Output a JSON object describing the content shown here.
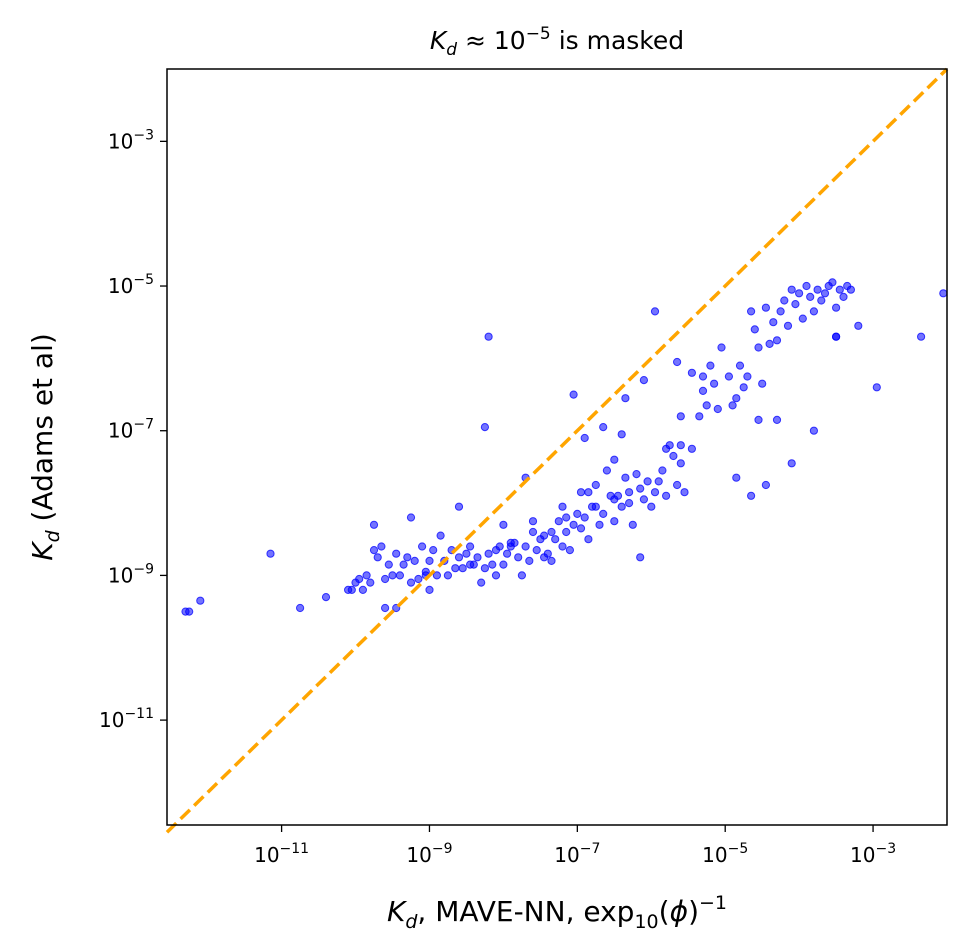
{
  "chart_data": {
    "type": "scatter",
    "scale": "log",
    "title": {
      "italic": "K",
      "sub": "d",
      "mid": " ≈ 10",
      "sup": "−5",
      "tail": " is masked"
    },
    "xlabel": {
      "italic": "K",
      "sub": "d",
      "text1": ", MAVE-NN, exp",
      "sub2": "10",
      "text2": "(",
      "italic2": "ϕ",
      "text3": ")",
      "sup": "−1"
    },
    "ylabel": {
      "italic": "K",
      "sub": "d",
      "text": " (Adams et al)"
    },
    "xlim_log10": [
      -12.55,
      -2.0
    ],
    "ylim_log10": [
      -12.45,
      -2.0
    ],
    "xticks": [
      {
        "base": "10",
        "exp": "−11",
        "value": -11
      },
      {
        "base": "10",
        "exp": "−9",
        "value": -9
      },
      {
        "base": "10",
        "exp": "−7",
        "value": -7
      },
      {
        "base": "10",
        "exp": "−5",
        "value": -5
      },
      {
        "base": "10",
        "exp": "−3",
        "value": -3
      }
    ],
    "yticks": [
      {
        "base": "10",
        "exp": "−3",
        "value": -3
      },
      {
        "base": "10",
        "exp": "−5",
        "value": -5
      },
      {
        "base": "10",
        "exp": "−7",
        "value": -7
      },
      {
        "base": "10",
        "exp": "−9",
        "value": -9
      },
      {
        "base": "10",
        "exp": "−11",
        "value": -11
      }
    ],
    "point_color": "#0000ff",
    "point_alpha": 0.55,
    "line": {
      "type": "y=x",
      "color": "#ffa500",
      "dash": true
    },
    "points_log10": [
      [
        -12.3,
        -9.5
      ],
      [
        -12.25,
        -9.5
      ],
      [
        -12.1,
        -9.35
      ],
      [
        -11.15,
        -8.7
      ],
      [
        -10.75,
        -9.45
      ],
      [
        -10.4,
        -9.3
      ],
      [
        -10.1,
        -9.2
      ],
      [
        -10.05,
        -9.2
      ],
      [
        -10.0,
        -9.1
      ],
      [
        -9.95,
        -9.05
      ],
      [
        -9.9,
        -9.2
      ],
      [
        -9.85,
        -9.0
      ],
      [
        -9.8,
        -9.1
      ],
      [
        -9.75,
        -8.65
      ],
      [
        -9.7,
        -8.75
      ],
      [
        -9.65,
        -8.6
      ],
      [
        -9.6,
        -9.05
      ],
      [
        -9.55,
        -8.85
      ],
      [
        -9.5,
        -9.0
      ],
      [
        -9.45,
        -9.45
      ],
      [
        -9.45,
        -8.7
      ],
      [
        -9.4,
        -9.0
      ],
      [
        -9.35,
        -8.85
      ],
      [
        -9.3,
        -8.75
      ],
      [
        -9.25,
        -9.1
      ],
      [
        -9.2,
        -8.8
      ],
      [
        -9.15,
        -9.05
      ],
      [
        -9.1,
        -8.6
      ],
      [
        -9.05,
        -9.0
      ],
      [
        -9.0,
        -8.8
      ],
      [
        -9.0,
        -9.2
      ],
      [
        -8.95,
        -8.65
      ],
      [
        -8.9,
        -9.0
      ],
      [
        -8.85,
        -8.45
      ],
      [
        -8.8,
        -8.8
      ],
      [
        -8.75,
        -9.0
      ],
      [
        -8.7,
        -8.65
      ],
      [
        -8.65,
        -8.9
      ],
      [
        -8.6,
        -8.75
      ],
      [
        -8.55,
        -8.9
      ],
      [
        -8.5,
        -8.7
      ],
      [
        -8.45,
        -8.6
      ],
      [
        -8.4,
        -8.85
      ],
      [
        -8.35,
        -8.75
      ],
      [
        -8.3,
        -9.1
      ],
      [
        -8.25,
        -8.9
      ],
      [
        -8.2,
        -8.7
      ],
      [
        -8.15,
        -8.85
      ],
      [
        -8.1,
        -9.0
      ],
      [
        -8.05,
        -8.6
      ],
      [
        -8.0,
        -8.3
      ],
      [
        -8.0,
        -8.85
      ],
      [
        -7.95,
        -8.7
      ],
      [
        -7.9,
        -8.6
      ],
      [
        -7.85,
        -8.55
      ],
      [
        -7.8,
        -8.75
      ],
      [
        -7.75,
        -9.0
      ],
      [
        -7.7,
        -8.6
      ],
      [
        -7.65,
        -8.8
      ],
      [
        -7.6,
        -8.25
      ],
      [
        -7.55,
        -8.65
      ],
      [
        -7.5,
        -8.5
      ],
      [
        -7.45,
        -8.45
      ],
      [
        -7.45,
        -8.75
      ],
      [
        -7.4,
        -8.7
      ],
      [
        -7.35,
        -8.4
      ],
      [
        -7.3,
        -8.5
      ],
      [
        -7.25,
        -8.25
      ],
      [
        -7.2,
        -8.6
      ],
      [
        -7.2,
        -8.05
      ],
      [
        -7.15,
        -8.4
      ],
      [
        -7.1,
        -8.65
      ],
      [
        -7.05,
        -8.3
      ],
      [
        -7.0,
        -8.15
      ],
      [
        -6.95,
        -8.35
      ],
      [
        -6.9,
        -8.2
      ],
      [
        -6.85,
        -8.5
      ],
      [
        -6.8,
        -8.05
      ],
      [
        -6.75,
        -7.75
      ],
      [
        -6.7,
        -8.3
      ],
      [
        -6.65,
        -8.15
      ],
      [
        -6.6,
        -7.55
      ],
      [
        -6.55,
        -7.9
      ],
      [
        -6.5,
        -8.25
      ],
      [
        -6.45,
        -7.9
      ],
      [
        -6.4,
        -8.05
      ],
      [
        -6.35,
        -7.65
      ],
      [
        -6.3,
        -7.85
      ],
      [
        -6.25,
        -8.3
      ],
      [
        -6.2,
        -7.6
      ],
      [
        -6.15,
        -7.8
      ],
      [
        -6.1,
        -7.95
      ],
      [
        -6.05,
        -7.7
      ],
      [
        -6.0,
        -8.05
      ],
      [
        -5.95,
        -7.85
      ],
      [
        -5.9,
        -7.7
      ],
      [
        -5.85,
        -7.55
      ],
      [
        -5.8,
        -7.9
      ],
      [
        -5.75,
        -7.2
      ],
      [
        -5.7,
        -7.35
      ],
      [
        -5.65,
        -7.75
      ],
      [
        -5.6,
        -7.45
      ],
      [
        -5.55,
        -7.85
      ],
      [
        -5.45,
        -7.25
      ],
      [
        -5.35,
        -6.8
      ],
      [
        -5.3,
        -6.45
      ],
      [
        -5.25,
        -6.65
      ],
      [
        -5.2,
        -6.1
      ],
      [
        -5.15,
        -6.35
      ],
      [
        -5.1,
        -6.7
      ],
      [
        -5.05,
        -5.85
      ],
      [
        -4.95,
        -6.25
      ],
      [
        -4.9,
        -6.65
      ],
      [
        -4.85,
        -6.55
      ],
      [
        -4.8,
        -6.1
      ],
      [
        -4.75,
        -6.4
      ],
      [
        -4.7,
        -6.25
      ],
      [
        -4.65,
        -5.35
      ],
      [
        -4.6,
        -5.6
      ],
      [
        -4.55,
        -5.85
      ],
      [
        -4.5,
        -6.35
      ],
      [
        -4.45,
        -5.3
      ],
      [
        -4.4,
        -5.8
      ],
      [
        -4.35,
        -5.5
      ],
      [
        -4.3,
        -5.75
      ],
      [
        -4.25,
        -5.35
      ],
      [
        -4.2,
        -5.2
      ],
      [
        -4.15,
        -5.55
      ],
      [
        -4.1,
        -5.05
      ],
      [
        -4.05,
        -5.25
      ],
      [
        -4.0,
        -5.1
      ],
      [
        -3.95,
        -5.45
      ],
      [
        -3.9,
        -5.0
      ],
      [
        -3.85,
        -5.15
      ],
      [
        -3.8,
        -5.35
      ],
      [
        -3.75,
        -5.05
      ],
      [
        -3.7,
        -5.2
      ],
      [
        -3.65,
        -5.1
      ],
      [
        -3.6,
        -5.0
      ],
      [
        -3.55,
        -4.95
      ],
      [
        -3.5,
        -5.3
      ],
      [
        -3.45,
        -5.05
      ],
      [
        -3.4,
        -5.15
      ],
      [
        -3.35,
        -5.0
      ],
      [
        -3.8,
        -7.0
      ],
      [
        -4.1,
        -7.45
      ],
      [
        -4.3,
        -6.85
      ],
      [
        -3.5,
        -5.7
      ],
      [
        -3.5,
        -5.7
      ],
      [
        -2.35,
        -5.7
      ],
      [
        -2.05,
        -5.1
      ],
      [
        -2.95,
        -6.4
      ],
      [
        -3.3,
        -5.05
      ],
      [
        -3.2,
        -5.55
      ],
      [
        -8.25,
        -6.95
      ],
      [
        -8.2,
        -5.7
      ],
      [
        -7.05,
        -6.5
      ],
      [
        -6.65,
        -6.95
      ],
      [
        -5.95,
        -5.35
      ],
      [
        -6.5,
        -7.95
      ],
      [
        -7.15,
        -8.2
      ],
      [
        -6.95,
        -7.85
      ],
      [
        -5.6,
        -6.8
      ],
      [
        -5.45,
        -6.2
      ],
      [
        -5.6,
        -7.2
      ],
      [
        -4.85,
        -7.65
      ],
      [
        -4.45,
        -7.75
      ],
      [
        -4.65,
        -7.9
      ],
      [
        -4.55,
        -6.85
      ],
      [
        -9.75,
        -8.3
      ],
      [
        -9.25,
        -8.2
      ],
      [
        -8.6,
        -8.05
      ],
      [
        -7.9,
        -8.55
      ],
      [
        -9.05,
        -8.95
      ],
      [
        -9.6,
        -9.45
      ],
      [
        -6.15,
        -8.75
      ],
      [
        -7.6,
        -8.4
      ],
      [
        -8.45,
        -8.85
      ],
      [
        -6.75,
        -8.05
      ],
      [
        -7.35,
        -8.8
      ],
      [
        -6.85,
        -7.85
      ],
      [
        -7.7,
        -7.65
      ],
      [
        -8.1,
        -8.65
      ],
      [
        -6.4,
        -7.05
      ],
      [
        -6.9,
        -7.1
      ],
      [
        -5.3,
        -6.25
      ],
      [
        -6.3,
        -8.0
      ],
      [
        -5.8,
        -7.25
      ],
      [
        -6.1,
        -6.3
      ],
      [
        -5.65,
        -6.05
      ],
      [
        -6.35,
        -6.55
      ],
      [
        -6.5,
        -7.4
      ]
    ]
  }
}
